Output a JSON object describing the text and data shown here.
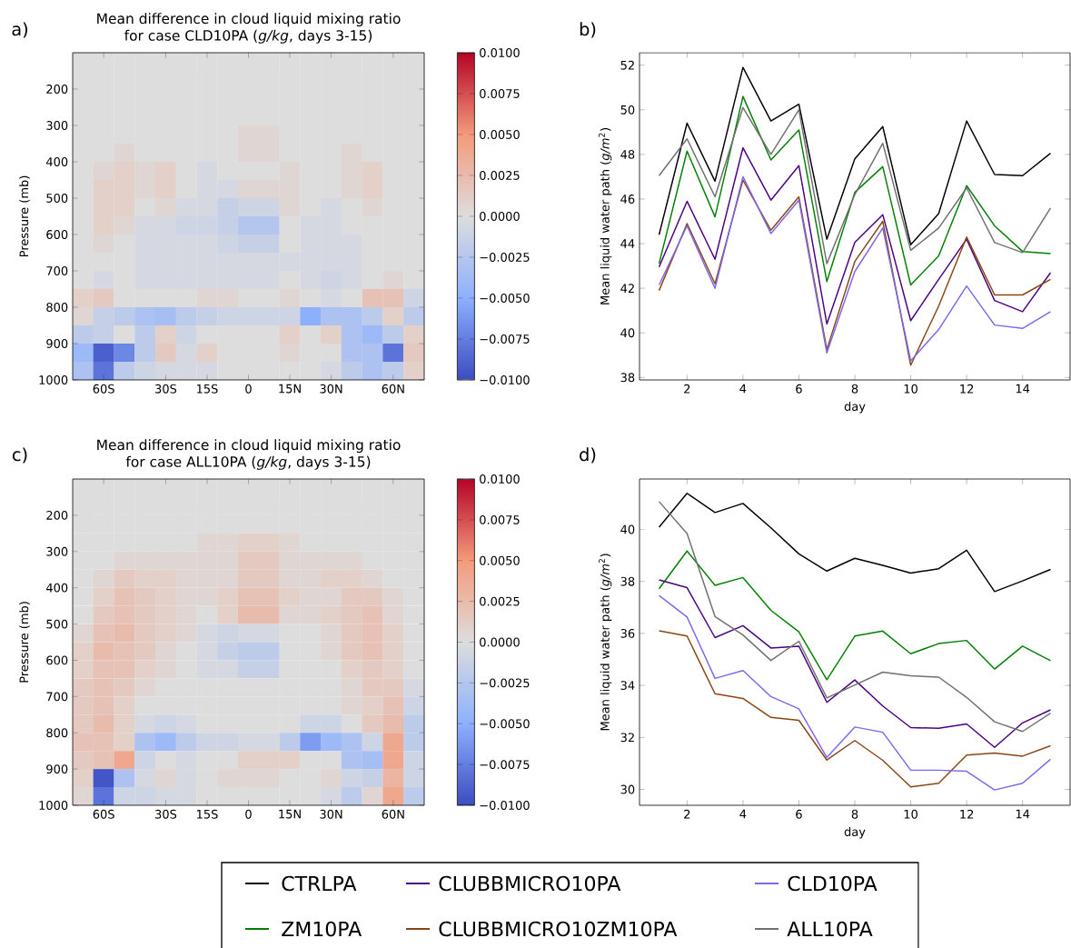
{
  "chart_data": [
    {
      "type": "heatmap",
      "title": "Mean difference in cloud liquid mixing ratio",
      "subtitle": "for case CLD10PA (*g/kg*, days 3-15)",
      "ylabel": "Pressure (mb)",
      "annotations": [
        "a)"
      ],
      "categories": [
        null,
        "60S",
        null,
        null,
        "30S",
        null,
        "15S",
        null,
        "0",
        null,
        "15N",
        null,
        "30N",
        null,
        null,
        "60N",
        null
      ],
      "y": [
        125,
        175,
        225,
        275,
        325,
        375,
        425,
        475,
        525,
        575,
        625,
        675,
        725,
        775,
        825,
        875,
        925,
        975
      ],
      "ylim": [
        1000,
        100
      ],
      "yticks": [
        200,
        300,
        400,
        500,
        600,
        700,
        800,
        900,
        1000
      ],
      "clim": [
        -0.01,
        0.01
      ],
      "cticks": [
        {
          "value": -0.01,
          "label": "−0.0100"
        },
        {
          "value": -0.0075,
          "label": "−0.0075"
        },
        {
          "value": -0.005,
          "label": "−0.0050"
        },
        {
          "value": -0.0025,
          "label": "−0.0025"
        },
        {
          "value": 0,
          "label": "0.0000"
        },
        {
          "value": 0.0025,
          "label": "0.0025"
        },
        {
          "value": 0.005,
          "label": "0.0050"
        },
        {
          "value": 0.0075,
          "label": "0.0075"
        },
        {
          "value": 0.01,
          "label": "0.0100"
        }
      ],
      "cells": [
        [
          0,
          0,
          0,
          0,
          0,
          0,
          0,
          0,
          0,
          0,
          0,
          0,
          0,
          0,
          0,
          0,
          0
        ],
        [
          0,
          0,
          0,
          0,
          0,
          0,
          0,
          0,
          0,
          0,
          0,
          0,
          0,
          0,
          0,
          0,
          0
        ],
        [
          0,
          0,
          0,
          0,
          0,
          0,
          0,
          0,
          0,
          0,
          0,
          0,
          0,
          0,
          0,
          0,
          0
        ],
        [
          0,
          0,
          0,
          0,
          0,
          0,
          0,
          0,
          0,
          0,
          0,
          0,
          0,
          0,
          0,
          0,
          0
        ],
        [
          0,
          0,
          0,
          0,
          0,
          0,
          0,
          0,
          0.0005,
          0.0005,
          0,
          0,
          0,
          0,
          0,
          0,
          0
        ],
        [
          0,
          0,
          0.0005,
          0,
          0,
          0,
          0,
          0,
          0.0005,
          0.0005,
          0,
          0,
          0,
          0.0005,
          0,
          0,
          0
        ],
        [
          0,
          0.0005,
          0.001,
          0.0005,
          0.001,
          0,
          -0.0005,
          0,
          0,
          0,
          0.0005,
          0,
          0,
          0.0005,
          0.001,
          0,
          0
        ],
        [
          0,
          0.001,
          0.001,
          0.0005,
          0.001,
          0,
          -0.0005,
          -0.0005,
          0.0005,
          0.0005,
          0.0005,
          0,
          0,
          0.0005,
          0.001,
          0,
          0
        ],
        [
          0,
          0.001,
          0.001,
          0,
          0.0005,
          -0.0005,
          -0.0005,
          -0.0015,
          -0.001,
          -0.001,
          0.0005,
          0,
          -0.0005,
          0,
          0.0005,
          0,
          0
        ],
        [
          0,
          0.001,
          0.0005,
          -0.0005,
          -0.0005,
          -0.001,
          -0.001,
          -0.0015,
          -0.0025,
          -0.0025,
          0,
          -0.0005,
          -0.0005,
          0,
          0,
          0,
          0
        ],
        [
          0,
          0.0005,
          0,
          -0.0005,
          -0.0005,
          -0.0005,
          -0.0005,
          -0.001,
          -0.0015,
          -0.0015,
          0,
          -0.0005,
          -0.0005,
          -0.0005,
          0,
          0,
          0
        ],
        [
          0,
          0,
          0,
          -0.0005,
          -0.0005,
          -0.0005,
          -0.0005,
          -0.0005,
          -0.0005,
          -0.0005,
          -0.0005,
          -0.0005,
          -0.0005,
          -0.0005,
          0,
          0,
          0
        ],
        [
          0,
          -0.0005,
          0,
          -0.0005,
          -0.0005,
          -0.0005,
          -0.0005,
          -0.0005,
          -0.0005,
          -0.0005,
          0,
          -0.0005,
          -0.001,
          -0.0005,
          0,
          0.0005,
          0
        ],
        [
          0.001,
          0.0015,
          0,
          0,
          0,
          0,
          0.0005,
          0.0005,
          0,
          0,
          0.0005,
          0,
          -0.0005,
          0,
          0.002,
          0.002,
          -0.001
        ],
        [
          0.0005,
          -0.0015,
          -0.002,
          -0.003,
          -0.0035,
          -0.002,
          -0.0015,
          -0.001,
          -0.001,
          -0.001,
          -0.001,
          -0.005,
          -0.003,
          -0.003,
          -0.002,
          0.001,
          -0.002
        ],
        [
          -0.002,
          -0.0015,
          0,
          -0.002,
          0.001,
          -0.001,
          0,
          0,
          0,
          0,
          0.001,
          0,
          0.001,
          -0.003,
          -0.004,
          -0.002,
          0.001
        ],
        [
          -0.004,
          -0.009,
          -0.007,
          -0.002,
          0.0015,
          -0.0005,
          0.001,
          0,
          0,
          0,
          0.0005,
          0,
          0,
          -0.003,
          -0.003,
          -0.008,
          0.0015
        ],
        [
          -0.003,
          -0.008,
          -0.002,
          -0.001,
          -0.0005,
          -0.0005,
          -0.0005,
          0,
          0,
          0,
          0,
          0,
          -0.0005,
          -0.002,
          -0.003,
          -0.002,
          0.001
        ]
      ]
    },
    {
      "type": "line",
      "ylabel": "Mean liquid water path (*g/m*$^{2}$)",
      "xlabel": "day",
      "annotations": [
        "b)"
      ],
      "x": [
        1,
        2,
        3,
        4,
        5,
        6,
        7,
        8,
        9,
        10,
        11,
        12,
        13,
        14,
        15
      ],
      "xlim": [
        0.3,
        15.7
      ],
      "ylim": [
        37.89,
        52.56
      ],
      "xticks": [
        2,
        4,
        6,
        8,
        10,
        12,
        14
      ],
      "yticks": [
        38,
        40,
        42,
        44,
        46,
        48,
        50,
        52
      ],
      "series": [
        {
          "color": "#000000",
          "values": [
            44.4,
            49.4,
            46.8,
            51.9,
            49.5,
            50.25,
            44.2,
            47.8,
            49.25,
            43.95,
            45.35,
            49.5,
            47.1,
            47.05,
            48.05
          ]
        },
        {
          "color": "#008000",
          "values": [
            43.1,
            48.15,
            45.2,
            50.6,
            47.75,
            49.1,
            42.3,
            46.3,
            47.45,
            42.15,
            43.45,
            46.6,
            44.8,
            43.65,
            43.55
          ]
        },
        {
          "color": "#4b0082",
          "values": [
            42.95,
            45.9,
            43.3,
            48.3,
            45.95,
            47.5,
            40.4,
            44.05,
            45.3,
            40.55,
            42.4,
            44.2,
            41.45,
            40.95,
            42.7
          ]
        },
        {
          "color": "#8b4513",
          "values": [
            41.9,
            44.9,
            42.2,
            46.85,
            44.6,
            46.1,
            39.25,
            43.2,
            45.0,
            38.55,
            41.2,
            44.3,
            41.7,
            41.7,
            42.4
          ]
        },
        {
          "color": "#7b68ee",
          "values": [
            42.15,
            44.8,
            42.0,
            47.0,
            44.45,
            45.95,
            39.1,
            42.75,
            44.7,
            38.75,
            40.15,
            42.1,
            40.35,
            40.2,
            40.95
          ]
        },
        {
          "color": "#707070",
          "values": [
            47.05,
            48.7,
            46.1,
            50.1,
            48.0,
            50.0,
            43.1,
            46.2,
            48.5,
            43.7,
            44.7,
            46.5,
            44.05,
            43.6,
            45.6
          ]
        }
      ]
    },
    {
      "type": "heatmap",
      "title": "Mean difference in cloud liquid mixing ratio",
      "subtitle": "for case ALL10PA (*g/kg*, days 3-15)",
      "ylabel": "Pressure (mb)",
      "annotations": [
        "c)"
      ],
      "categories": [
        null,
        "60S",
        null,
        null,
        "30S",
        null,
        "15S",
        null,
        "0",
        null,
        "15N",
        null,
        "30N",
        null,
        null,
        "60N",
        null
      ],
      "y": [
        125,
        175,
        225,
        275,
        325,
        375,
        425,
        475,
        525,
        575,
        625,
        675,
        725,
        775,
        825,
        875,
        925,
        975
      ],
      "ylim": [
        1000,
        100
      ],
      "yticks": [
        200,
        300,
        400,
        500,
        600,
        700,
        800,
        900,
        1000
      ],
      "clim": [
        -0.01,
        0.01
      ],
      "cticks": [
        {
          "value": -0.01,
          "label": "−0.0100"
        },
        {
          "value": -0.0075,
          "label": "−0.0075"
        },
        {
          "value": -0.005,
          "label": "−0.0050"
        },
        {
          "value": -0.0025,
          "label": "−0.0025"
        },
        {
          "value": 0,
          "label": "0.0000"
        },
        {
          "value": 0.0025,
          "label": "0.0025"
        },
        {
          "value": 0.005,
          "label": "0.0050"
        },
        {
          "value": 0.0075,
          "label": "0.0075"
        },
        {
          "value": 0.01,
          "label": "0.0100"
        }
      ],
      "cells": [
        [
          0,
          0,
          0,
          0,
          0,
          0,
          0,
          0,
          0,
          0,
          0,
          0,
          0,
          0,
          0,
          0,
          0
        ],
        [
          0,
          0,
          0,
          0,
          0,
          0,
          0,
          0,
          0,
          0,
          0,
          0,
          0,
          0,
          0,
          0,
          0
        ],
        [
          0,
          0,
          0,
          0,
          0,
          0,
          0,
          0,
          0,
          0,
          0,
          0,
          0,
          0,
          0,
          0,
          0
        ],
        [
          0,
          0,
          0,
          0,
          0,
          0,
          0.0005,
          0.0005,
          0.001,
          0.001,
          0.0005,
          0,
          0,
          0,
          0,
          0,
          0
        ],
        [
          0,
          0,
          0.0005,
          0.0005,
          0.0005,
          0.0005,
          0.0005,
          0.0005,
          0.0015,
          0.0015,
          0.0005,
          0.0005,
          0.0005,
          0.0005,
          0,
          0,
          0
        ],
        [
          0,
          0.0005,
          0.0015,
          0.001,
          0.001,
          0.0005,
          0.0005,
          0.0005,
          0.0015,
          0.0015,
          0.0005,
          0.0005,
          0.001,
          0.001,
          0.0005,
          0,
          0
        ],
        [
          0,
          0.001,
          0.002,
          0.0015,
          0.001,
          0.0005,
          0.0005,
          0.001,
          0.002,
          0.002,
          0.001,
          0.0005,
          0.0005,
          0.0015,
          0.0015,
          0.0005,
          0
        ],
        [
          0,
          0.0015,
          0.002,
          0.0015,
          0.001,
          0.0005,
          0,
          0.001,
          0.0025,
          0.0025,
          0.0005,
          0.0005,
          0.001,
          0.0015,
          0.002,
          0.0005,
          0
        ],
        [
          0.0005,
          0.002,
          0.0025,
          0.0015,
          0.001,
          0.0005,
          -0.0005,
          -0.001,
          -0.0005,
          -0.0005,
          0,
          0,
          0.0005,
          0.0015,
          0.002,
          0.001,
          0
        ],
        [
          0.001,
          0.0025,
          0.002,
          0.0015,
          0.0005,
          0,
          -0.0005,
          -0.0015,
          -0.002,
          -0.002,
          0,
          0,
          0.0005,
          0.0015,
          0.002,
          0.001,
          0
        ],
        [
          0.001,
          0.002,
          0.002,
          0.001,
          0.0005,
          0,
          -0.0005,
          -0.0005,
          -0.0015,
          -0.0015,
          0,
          0,
          0,
          0.001,
          0.0015,
          0.001,
          0
        ],
        [
          0.0015,
          0.002,
          0.0015,
          0.0005,
          0,
          0,
          0,
          0,
          0,
          0,
          0,
          0,
          0,
          0.0005,
          0.0015,
          0.0015,
          -0.0005
        ],
        [
          0.0015,
          0.002,
          0.001,
          0,
          0,
          0,
          0,
          0,
          0,
          0,
          0,
          0,
          0,
          0.0005,
          0.001,
          0.002,
          -0.001
        ],
        [
          0.0015,
          0.0025,
          0.001,
          -0.0005,
          -0.001,
          -0.0005,
          0,
          0,
          0,
          0,
          0,
          -0.001,
          -0.001,
          0,
          0.0015,
          0.0025,
          -0.002
        ],
        [
          0.002,
          0.002,
          0.001,
          -0.003,
          -0.004,
          -0.002,
          -0.001,
          -0.001,
          -0.0005,
          -0.0005,
          -0.002,
          -0.006,
          -0.004,
          -0.003,
          -0.001,
          0.004,
          -0.002
        ],
        [
          0.0015,
          0.002,
          0.004,
          -0.001,
          0,
          -0.0005,
          0,
          0,
          0.001,
          0.001,
          0.001,
          0,
          0,
          -0.003,
          -0.0035,
          0.004,
          -0.001
        ],
        [
          0.001,
          -0.0095,
          -0.003,
          -0.0005,
          0.0005,
          -0.0005,
          0,
          0.0005,
          0.0005,
          0.0005,
          0,
          0,
          0.0005,
          -0.001,
          -0.0015,
          0.003,
          -0.001
        ],
        [
          0.0005,
          -0.008,
          -0.001,
          -0.001,
          -0.0005,
          -0.0005,
          0,
          0,
          0,
          0,
          0,
          0,
          -0.0005,
          -0.002,
          0.0005,
          0.004,
          -0.002
        ]
      ]
    },
    {
      "type": "line",
      "ylabel": "Mean liquid water path (*g/m*$^{2}$)",
      "xlabel": "day",
      "annotations": [
        "d)"
      ],
      "legend": "bottom",
      "x": [
        1,
        2,
        3,
        4,
        5,
        6,
        7,
        8,
        9,
        10,
        11,
        12,
        13,
        14,
        15
      ],
      "xlim": [
        0.3,
        15.7
      ],
      "ylim": [
        29.39,
        41.94
      ],
      "xticks": [
        2,
        4,
        6,
        8,
        10,
        12,
        14
      ],
      "yticks": [
        30,
        32,
        34,
        36,
        38,
        40
      ],
      "series": [
        {
          "name": "CTRLPA",
          "color": "#000000",
          "values": [
            40.09,
            41.39,
            40.65,
            41.0,
            40.06,
            39.06,
            38.4,
            38.89,
            38.62,
            38.32,
            38.49,
            39.2,
            37.61,
            38.02,
            38.46
          ]
        },
        {
          "name": "ZM10PA",
          "color": "#008000",
          "values": [
            37.72,
            39.17,
            37.85,
            38.15,
            36.89,
            36.06,
            34.22,
            35.9,
            36.09,
            35.22,
            35.61,
            35.73,
            34.63,
            35.51,
            34.95
          ]
        },
        {
          "name": "CLUBBMICRO10PA",
          "color": "#4b0082",
          "values": [
            38.06,
            37.76,
            35.84,
            36.3,
            35.44,
            35.51,
            33.35,
            34.21,
            33.21,
            32.38,
            32.35,
            32.52,
            31.62,
            32.56,
            33.06
          ]
        },
        {
          "name": "CLUBBMICRO10ZM10PA",
          "color": "#8b4513",
          "values": [
            36.1,
            35.9,
            33.68,
            33.5,
            32.77,
            32.66,
            31.13,
            31.88,
            31.12,
            30.1,
            30.24,
            31.32,
            31.4,
            31.28,
            31.68
          ]
        },
        {
          "name": "CLD10PA",
          "color": "#7b68ee",
          "values": [
            37.46,
            36.63,
            34.27,
            34.57,
            33.57,
            33.1,
            31.23,
            32.4,
            32.2,
            30.74,
            30.74,
            30.7,
            29.98,
            30.24,
            31.16
          ]
        },
        {
          "name": "ALL10PA",
          "color": "#707070",
          "values": [
            41.07,
            39.84,
            36.65,
            35.94,
            34.96,
            35.7,
            33.52,
            34.02,
            34.51,
            34.37,
            34.32,
            33.54,
            32.6,
            32.23,
            32.93
          ]
        }
      ]
    }
  ]
}
